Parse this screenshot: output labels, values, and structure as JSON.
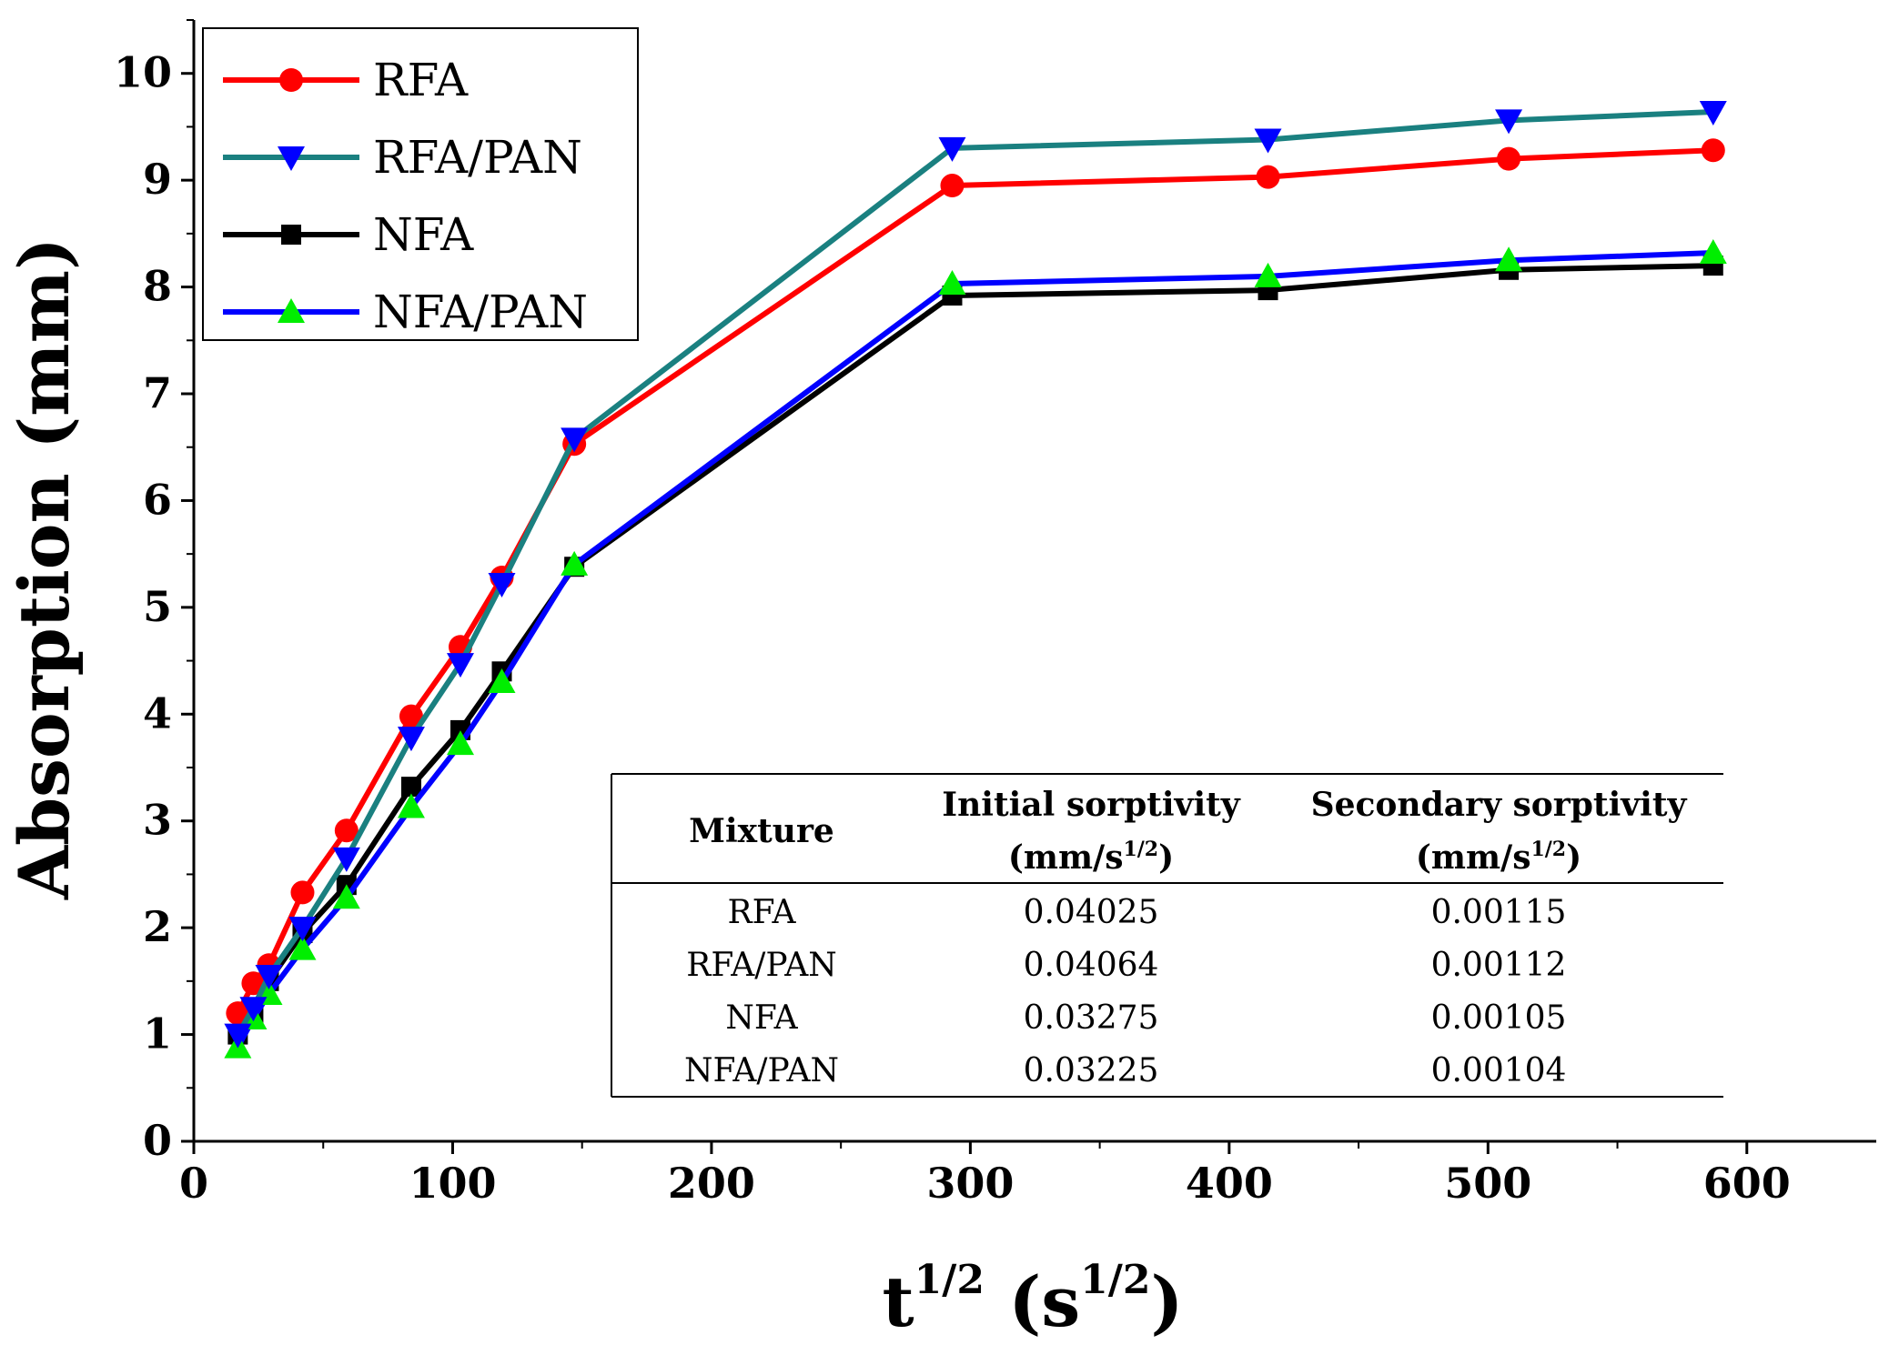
{
  "chart_data": {
    "type": "line",
    "title": "",
    "xlabel": "t1/2 (s1/2)",
    "ylabel": "Absorption (mm)",
    "xlabel_parts": {
      "base": "t",
      "sup1": "1/2",
      "mid": " (s",
      "sup2": "1/2",
      "end": ")"
    },
    "xlim": [
      0,
      650
    ],
    "ylim": [
      0,
      10.5
    ],
    "xticks": [
      0,
      100,
      200,
      300,
      400,
      500,
      600
    ],
    "yticks": [
      0,
      1,
      2,
      3,
      4,
      5,
      6,
      7,
      8,
      9,
      10
    ],
    "grid": false,
    "legend_position": "top-left",
    "series": [
      {
        "name": "RFA",
        "line_color": "#ff0000",
        "marker_color": "#ff0000",
        "marker": "circle",
        "x": [
          17,
          23,
          29,
          42,
          59,
          84,
          103,
          119,
          147,
          293,
          415,
          508,
          587
        ],
        "y": [
          1.2,
          1.48,
          1.65,
          2.33,
          2.91,
          3.98,
          4.63,
          5.28,
          6.53,
          8.95,
          9.03,
          9.2,
          9.28
        ]
      },
      {
        "name": "RFA/PAN",
        "line_color": "#1a8080",
        "marker_color": "#0000ff",
        "marker": "triangle-down",
        "x": [
          17,
          23,
          29,
          42,
          59,
          84,
          103,
          119,
          147,
          293,
          415,
          508,
          587
        ],
        "y": [
          1.0,
          1.25,
          1.55,
          2.0,
          2.65,
          3.78,
          4.47,
          5.22,
          6.58,
          9.3,
          9.38,
          9.56,
          9.64
        ]
      },
      {
        "name": "NFA",
        "line_color": "#000000",
        "marker_color": "#000000",
        "marker": "square",
        "x": [
          17,
          23,
          29,
          42,
          59,
          84,
          103,
          119,
          147,
          293,
          415,
          508,
          587
        ],
        "y": [
          1.0,
          1.2,
          1.5,
          1.95,
          2.4,
          3.32,
          3.85,
          4.4,
          5.38,
          7.92,
          7.97,
          8.16,
          8.2
        ]
      },
      {
        "name": "NFA/PAN",
        "line_color": "#0000ff",
        "marker_color": "#00ee00",
        "marker": "triangle-up",
        "x": [
          17,
          23,
          29,
          42,
          59,
          84,
          103,
          119,
          147,
          293,
          415,
          508,
          587
        ],
        "y": [
          0.88,
          1.15,
          1.38,
          1.8,
          2.28,
          3.13,
          3.72,
          4.3,
          5.4,
          8.03,
          8.1,
          8.25,
          8.32
        ]
      }
    ],
    "table": {
      "headers": [
        {
          "line1": "Mixture",
          "line2": "",
          "sup": "",
          "line2_end": ""
        },
        {
          "line1": "Initial sorptivity",
          "line2": "(mm/s",
          "sup": "1/2",
          "line2_end": ")"
        },
        {
          "line1": "Secondary sorptivity",
          "line2": "(mm/s",
          "sup": "1/2",
          "line2_end": ")"
        }
      ],
      "rows": [
        [
          "RFA",
          "0.04025",
          "0.00115"
        ],
        [
          "RFA/PAN",
          "0.04064",
          "0.00112"
        ],
        [
          "NFA",
          "0.03275",
          "0.00105"
        ],
        [
          "NFA/PAN",
          "0.03225",
          "0.00104"
        ]
      ]
    }
  }
}
